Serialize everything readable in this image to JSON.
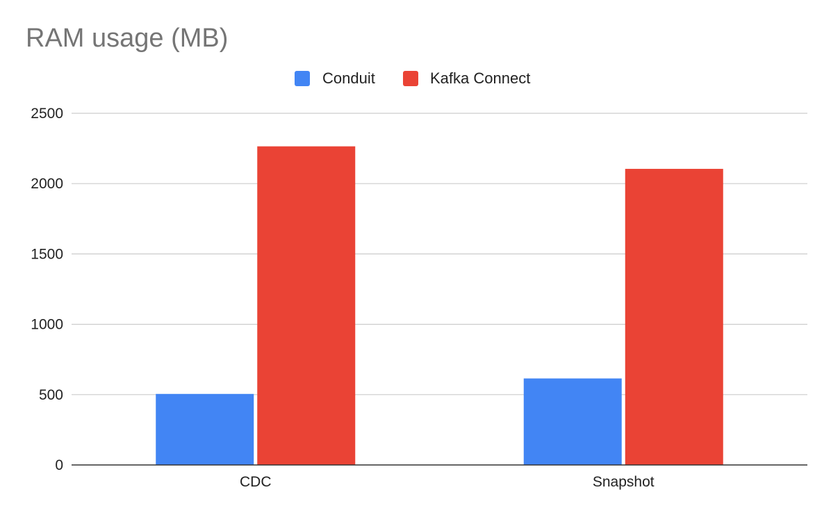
{
  "chart_data": {
    "type": "bar",
    "title": "RAM usage (MB)",
    "xlabel": "",
    "ylabel": "",
    "categories": [
      "CDC",
      "Snapshot"
    ],
    "series": [
      {
        "name": "Conduit",
        "values": [
          505,
          615
        ],
        "color": "#4285f4"
      },
      {
        "name": "Kafka Connect",
        "values": [
          2265,
          2105
        ],
        "color": "#ea4335"
      }
    ],
    "ylim": [
      0,
      2500
    ],
    "yticks": [
      "0",
      "500",
      "1000",
      "1500",
      "2000",
      "2500"
    ],
    "grid": true,
    "legend_position": "top-center",
    "gridline_color": "#cccccc",
    "axis_color": "#333333"
  }
}
